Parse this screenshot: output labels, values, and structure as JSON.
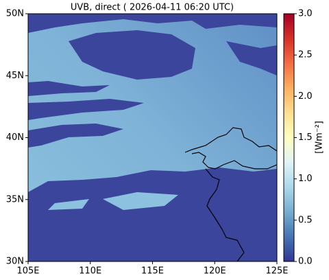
{
  "chart_data": {
    "type": "map",
    "title": "UVB, direct ( 2026-04-11 06:20 UTC)",
    "xlim": [
      105,
      125
    ],
    "xticks": [
      {
        "value": 105,
        "label": "105E"
      },
      {
        "value": 110,
        "label": "110E"
      },
      {
        "value": 115,
        "label": "115E"
      },
      {
        "value": 120,
        "label": "120E"
      },
      {
        "value": 125,
        "label": "125E"
      }
    ],
    "ylim": [
      30,
      50
    ],
    "yticks": [
      {
        "value": 30,
        "label": "30N"
      },
      {
        "value": 35,
        "label": "35N"
      },
      {
        "value": 40,
        "label": "40N"
      },
      {
        "value": 45,
        "label": "45N"
      },
      {
        "value": 50,
        "label": "50N"
      }
    ],
    "colorbar": {
      "label": "[Wm⁻²]",
      "lim": [
        0,
        3
      ],
      "ticks": [
        {
          "value": 0,
          "label": "0.0"
        },
        {
          "value": 0.5,
          "label": "0.5"
        },
        {
          "value": 1,
          "label": "1.0"
        },
        {
          "value": 1.5,
          "label": "1.5"
        },
        {
          "value": 2,
          "label": "2.0"
        },
        {
          "value": 2.5,
          "label": "2.5"
        },
        {
          "value": 3,
          "label": "3.0"
        }
      ]
    }
  }
}
